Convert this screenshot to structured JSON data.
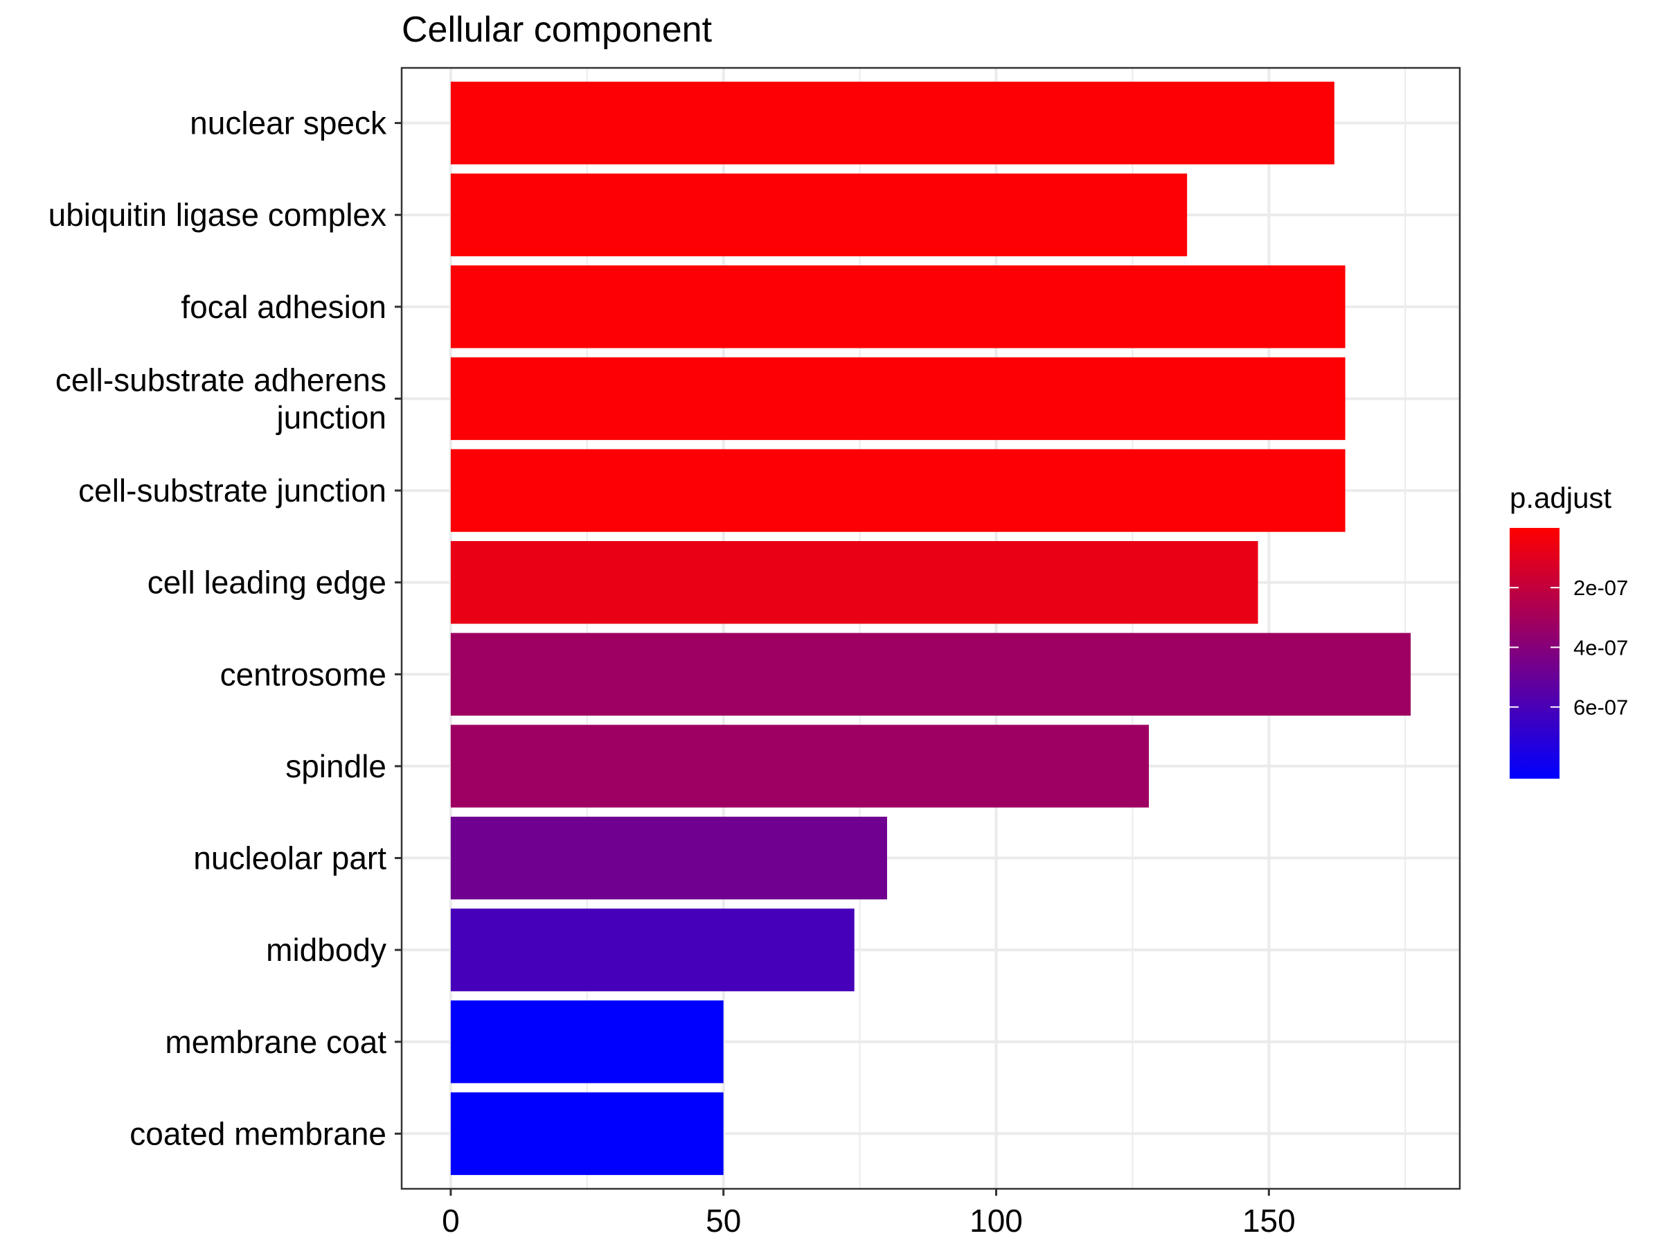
{
  "chart_data": {
    "type": "bar",
    "orientation": "horizontal",
    "title": "Cellular component",
    "xlabel": "",
    "ylabel": "",
    "xlim": [
      -9,
      185
    ],
    "x_ticks": [
      0,
      50,
      100,
      150
    ],
    "x_tick_labels": [
      "0",
      "50",
      "100",
      "150"
    ],
    "grid": true,
    "categories": [
      [
        "nuclear speck"
      ],
      [
        "ubiquitin ligase complex"
      ],
      [
        "focal adhesion"
      ],
      [
        "cell-substrate adherens",
        "junction"
      ],
      [
        "cell-substrate junction"
      ],
      [
        "cell leading edge"
      ],
      [
        "centrosome"
      ],
      [
        "spindle"
      ],
      [
        "nucleolar part"
      ],
      [
        "midbody"
      ],
      [
        "membrane coat"
      ],
      [
        "coated membrane"
      ]
    ],
    "values": [
      162,
      135,
      164,
      164,
      164,
      148,
      176,
      128,
      80,
      74,
      50,
      50
    ],
    "p_adjust": [
      1e-08,
      1e-08,
      1e-08,
      1e-08,
      1e-08,
      7e-08,
      3.2e-07,
      3.2e-07,
      4.7e-07,
      6.1e-07,
      8.4e-07,
      8.4e-07
    ],
    "legend": {
      "title": "p.adjust",
      "placement": "right",
      "min": 0.0,
      "max": 8.4e-07,
      "ticks": [
        2e-07,
        4e-07,
        6e-07
      ],
      "tick_labels": [
        "2e-07",
        "4e-07",
        "6e-07"
      ],
      "color_low_p": "#ff0000",
      "color_high_p": "#0000ff"
    },
    "colors": {
      "panel_border": "#333333",
      "grid": "#ebebeb",
      "axis_ticks": "#333333"
    }
  }
}
